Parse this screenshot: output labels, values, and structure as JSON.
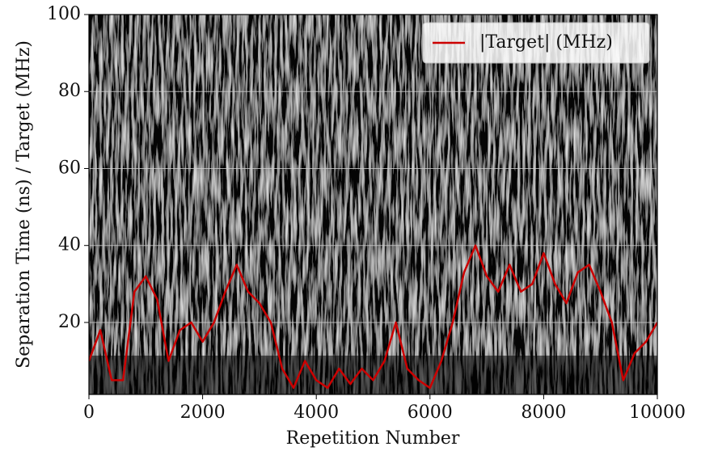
{
  "chart_data": {
    "type": "line",
    "xlabel": "Repetition Number",
    "ylabel": "Separation Time (ns) / Target (MHz)",
    "x": [
      0,
      200,
      400,
      600,
      800,
      1000,
      1200,
      1400,
      1600,
      1800,
      2000,
      2200,
      2400,
      2600,
      2800,
      3000,
      3200,
      3400,
      3600,
      3800,
      4000,
      4200,
      4400,
      4600,
      4800,
      5000,
      5200,
      5400,
      5600,
      5800,
      6000,
      6200,
      6400,
      6600,
      6800,
      7000,
      7200,
      7400,
      7600,
      7800,
      8000,
      8200,
      8400,
      8600,
      8800,
      9000,
      9200,
      9400,
      9600,
      9800,
      10000
    ],
    "series": [
      {
        "name": "|Target| (MHz)",
        "color": "#cc0000",
        "values": [
          10,
          18,
          5,
          5,
          28,
          32,
          26,
          10,
          18,
          20,
          15,
          20,
          28,
          35,
          28,
          25,
          20,
          8,
          3,
          10,
          5,
          3,
          8,
          4,
          8,
          5,
          10,
          20,
          8,
          5,
          3,
          10,
          20,
          33,
          40,
          32,
          28,
          35,
          28,
          30,
          38,
          30,
          25,
          33,
          35,
          28,
          20,
          5,
          12,
          15,
          20
        ]
      }
    ],
    "xlim": [
      0,
      10000
    ],
    "xticks": [
      0,
      2000,
      4000,
      6000,
      8000,
      10000
    ],
    "ylim": [
      1.3,
      100
    ],
    "yticks": [
      20,
      40,
      60,
      80,
      100
    ],
    "grid": true,
    "legend": "upper right"
  }
}
